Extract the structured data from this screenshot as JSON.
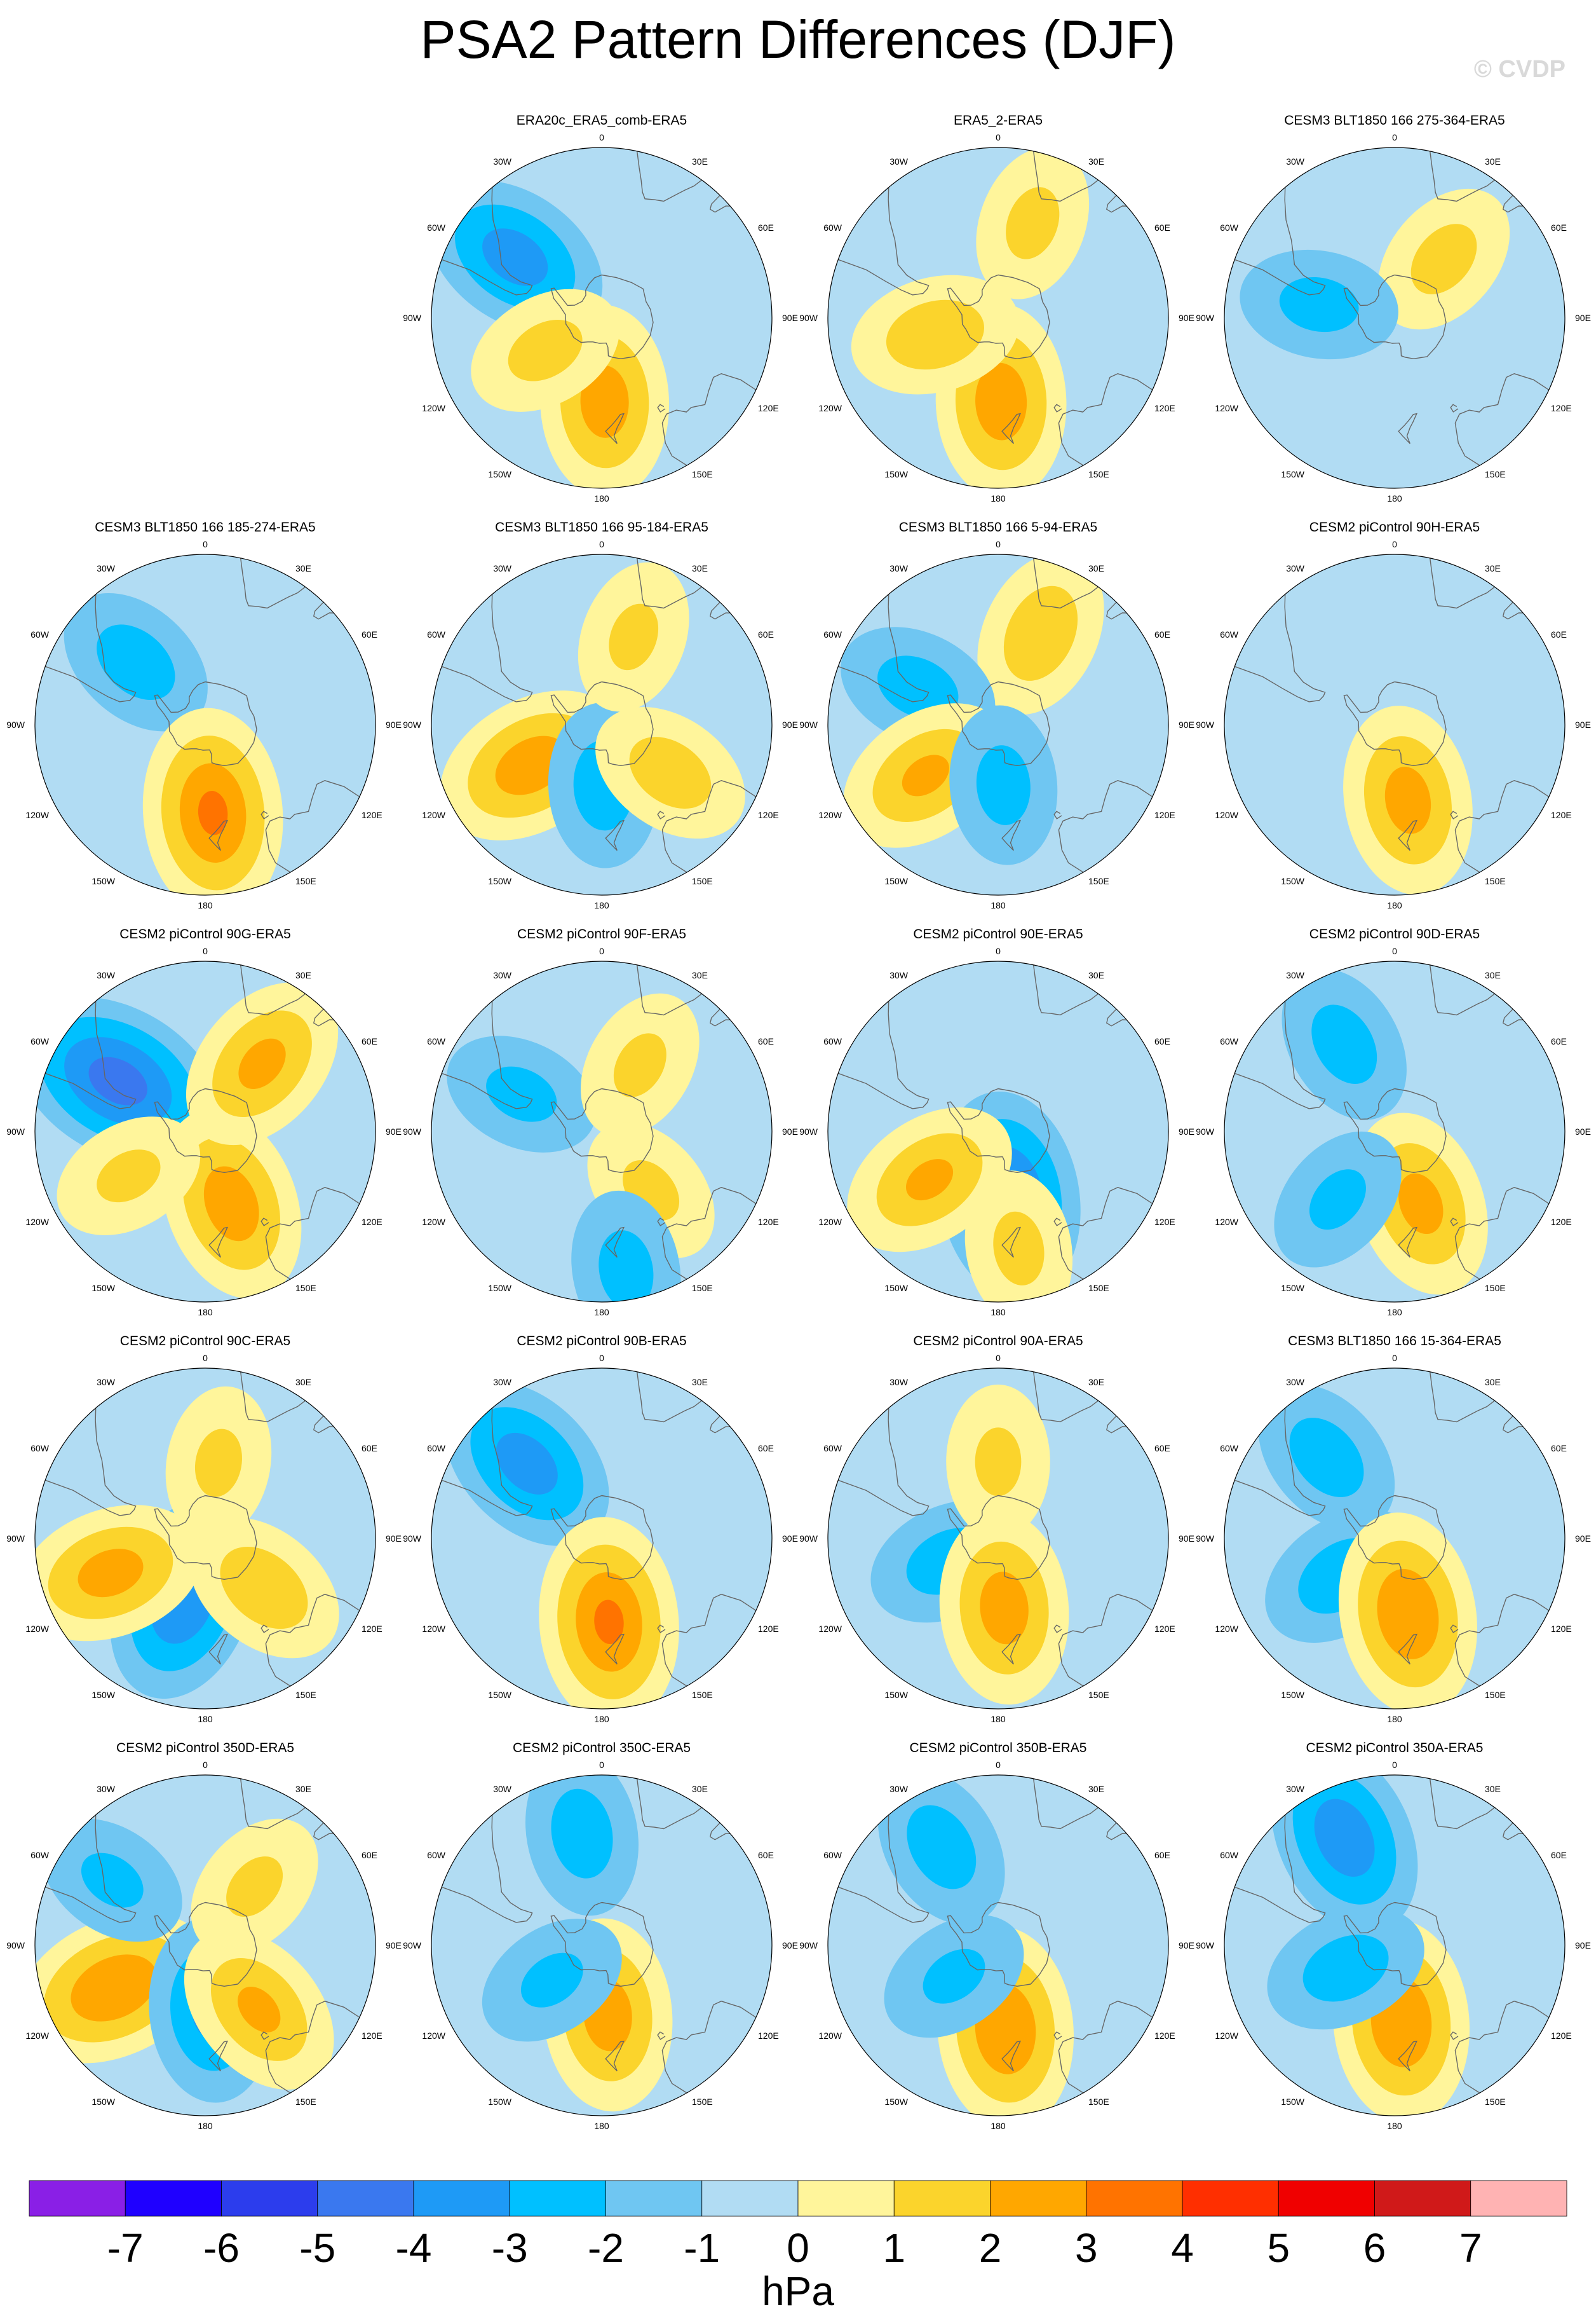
{
  "title": "PSA2 Pattern Differences (DJF)",
  "copyright": "© CVDP",
  "chart_data": {
    "type": "contour-map-panels",
    "projection": "south-polar-stereographic",
    "field": "PSA2 pattern difference",
    "season": "DJF",
    "panels": [
      {
        "title": "ERA20c_ERA5_comb-ERA5",
        "row": 0,
        "col": 1,
        "extrema": [
          {
            "lon": -55,
            "lat": -43,
            "v": -2.6
          },
          {
            "lon": 178,
            "lat": -52,
            "v": 2.6
          },
          {
            "lon": -120,
            "lat": -60,
            "v": 1.4
          }
        ]
      },
      {
        "title": "ERA5_2-ERA5",
        "row": 0,
        "col": 2,
        "extrema": [
          {
            "lon": 178,
            "lat": -52,
            "v": 2.7
          },
          {
            "lon": -105,
            "lat": -60,
            "v": 1.8
          },
          {
            "lon": 20,
            "lat": -45,
            "v": 1.3
          }
        ]
      },
      {
        "title": "CESM3 BLT1850 166 275-364-ERA5",
        "row": 0,
        "col": 3,
        "extrema": [
          {
            "lon": 40,
            "lat": -55,
            "v": 1.4
          },
          {
            "lon": -80,
            "lat": -55,
            "v": -1.4
          }
        ]
      },
      {
        "title": "CESM3 BLT1850 166 185-274-ERA5",
        "row": 1,
        "col": 0,
        "extrema": [
          {
            "lon": -48,
            "lat": -48,
            "v": -1.6
          },
          {
            "lon": 175,
            "lat": -50,
            "v": 3.2
          }
        ]
      },
      {
        "title": "CESM3 BLT1850 166 95-184-ERA5",
        "row": 1,
        "col": 1,
        "extrema": [
          {
            "lon": -120,
            "lat": -53,
            "v": 2.7
          },
          {
            "lon": 178,
            "lat": -62,
            "v": -1.6
          },
          {
            "lon": 125,
            "lat": -52,
            "v": 1.6
          },
          {
            "lon": 20,
            "lat": -48,
            "v": 1.2
          }
        ]
      },
      {
        "title": "CESM3 BLT1850 166 5-94-ERA5",
        "row": 1,
        "col": 2,
        "extrema": [
          {
            "lon": 25,
            "lat": -45,
            "v": 1.8
          },
          {
            "lon": -65,
            "lat": -50,
            "v": -1.5
          },
          {
            "lon": -125,
            "lat": -50,
            "v": 2.2
          },
          {
            "lon": 175,
            "lat": -62,
            "v": -1.4
          }
        ]
      },
      {
        "title": "CESM2 piControl 90H-ERA5",
        "row": 1,
        "col": 3,
        "extrema": [
          {
            "lon": 170,
            "lat": -55,
            "v": 2.5
          }
        ]
      },
      {
        "title": "CESM2 piControl 90G-ERA5",
        "row": 2,
        "col": 0,
        "extrema": [
          {
            "lon": -60,
            "lat": -45,
            "v": -3.6
          },
          {
            "lon": 160,
            "lat": -55,
            "v": 2.7
          },
          {
            "lon": 40,
            "lat": -50,
            "v": 2.3
          },
          {
            "lon": -120,
            "lat": -50,
            "v": 1.2
          }
        ]
      },
      {
        "title": "CESM2 piControl 90F-ERA5",
        "row": 2,
        "col": 1,
        "extrema": [
          {
            "lon": -65,
            "lat": -50,
            "v": -1.3
          },
          {
            "lon": 30,
            "lat": -55,
            "v": 1.2
          },
          {
            "lon": 140,
            "lat": -55,
            "v": 1.2
          },
          {
            "lon": 170,
            "lat": -30,
            "v": -1.4
          }
        ]
      },
      {
        "title": "CESM2 piControl 90E-ERA5",
        "row": 2,
        "col": 2,
        "extrema": [
          {
            "lon": 170,
            "lat": -60,
            "v": -3.2
          },
          {
            "lon": -125,
            "lat": -52,
            "v": 2.2
          },
          {
            "lon": 170,
            "lat": -38,
            "v": 1.3
          }
        ]
      },
      {
        "title": "CESM2 piControl 90D-ERA5",
        "row": 2,
        "col": 3,
        "extrema": [
          {
            "lon": -30,
            "lat": -45,
            "v": -1.5
          },
          {
            "lon": 160,
            "lat": -55,
            "v": 2.4
          },
          {
            "lon": -140,
            "lat": -50,
            "v": -1.2
          }
        ]
      },
      {
        "title": "CESM2 piControl 90C-ERA5",
        "row": 3,
        "col": 0,
        "extrema": [
          {
            "lon": -160,
            "lat": -60,
            "v": -3.0
          },
          {
            "lon": -110,
            "lat": -45,
            "v": 2.5
          },
          {
            "lon": 130,
            "lat": -55,
            "v": 1.8
          },
          {
            "lon": 10,
            "lat": -55,
            "v": 1.2
          }
        ]
      },
      {
        "title": "CESM2 piControl 90B-ERA5",
        "row": 3,
        "col": 1,
        "extrema": [
          {
            "lon": -45,
            "lat": -43,
            "v": -2.6
          },
          {
            "lon": 175,
            "lat": -52,
            "v": 3.2
          }
        ]
      },
      {
        "title": "CESM2 piControl 90A-ERA5",
        "row": 3,
        "col": 2,
        "extrema": [
          {
            "lon": -115,
            "lat": -65,
            "v": -1.6
          },
          {
            "lon": 175,
            "lat": -58,
            "v": 2.6
          },
          {
            "lon": 0,
            "lat": -55,
            "v": 1.2
          }
        ]
      },
      {
        "title": "CESM3 BLT1850 166 15-364-ERA5",
        "row": 3,
        "col": 3,
        "extrema": [
          {
            "lon": -40,
            "lat": -43,
            "v": -1.6
          },
          {
            "lon": -125,
            "lat": -60,
            "v": -1.7
          },
          {
            "lon": 170,
            "lat": -55,
            "v": 3.0
          }
        ]
      },
      {
        "title": "CESM2 piControl 350D-ERA5",
        "row": 4,
        "col": 0,
        "extrema": [
          {
            "lon": -115,
            "lat": -45,
            "v": 3.0
          },
          {
            "lon": 175,
            "lat": -60,
            "v": -2.3
          },
          {
            "lon": 140,
            "lat": -52,
            "v": 2.2
          },
          {
            "lon": -55,
            "lat": -40,
            "v": -1.2
          },
          {
            "lon": 40,
            "lat": -55,
            "v": 1.2
          }
        ]
      },
      {
        "title": "CESM2 piControl 350C-ERA5",
        "row": 4,
        "col": 1,
        "extrema": [
          {
            "lon": -10,
            "lat": -40,
            "v": -1.6
          },
          {
            "lon": 175,
            "lat": -58,
            "v": 2.6
          },
          {
            "lon": -125,
            "lat": -62,
            "v": -1.2
          }
        ]
      },
      {
        "title": "CESM2 piControl 350B-ERA5",
        "row": 4,
        "col": 2,
        "extrema": [
          {
            "lon": -30,
            "lat": -40,
            "v": -1.6
          },
          {
            "lon": 175,
            "lat": -52,
            "v": 3.0
          },
          {
            "lon": -125,
            "lat": -65,
            "v": -1.2
          }
        ]
      },
      {
        "title": "CESM2 piControl 350A-ERA5",
        "row": 4,
        "col": 3,
        "extrema": [
          {
            "lon": -25,
            "lat": -38,
            "v": -2.8
          },
          {
            "lon": 175,
            "lat": -55,
            "v": 3.0
          },
          {
            "lon": -115,
            "lat": -65,
            "v": -1.6
          }
        ]
      }
    ],
    "longitude_labels": [
      "0",
      "30E",
      "60E",
      "90E",
      "120E",
      "150E",
      "180",
      "150W",
      "120W",
      "90W",
      "60W",
      "30W"
    ],
    "colorbar": {
      "unit": "hPa",
      "ticks": [
        "-7",
        "-6",
        "-5",
        "-4",
        "-3",
        "-2",
        "-1",
        "0",
        "1",
        "2",
        "3",
        "4",
        "5",
        "6",
        "7"
      ],
      "colors": [
        "#8a1fe6",
        "#1f00ff",
        "#2c3ded",
        "#3a78ef",
        "#1e9af6",
        "#00c0ff",
        "#6fc6f2",
        "#b1dcf3",
        "#fff59b",
        "#fbd42c",
        "#ffa700",
        "#ff7300",
        "#ff2f00",
        "#f00000",
        "#d01919",
        "#ffb3b3"
      ]
    }
  }
}
